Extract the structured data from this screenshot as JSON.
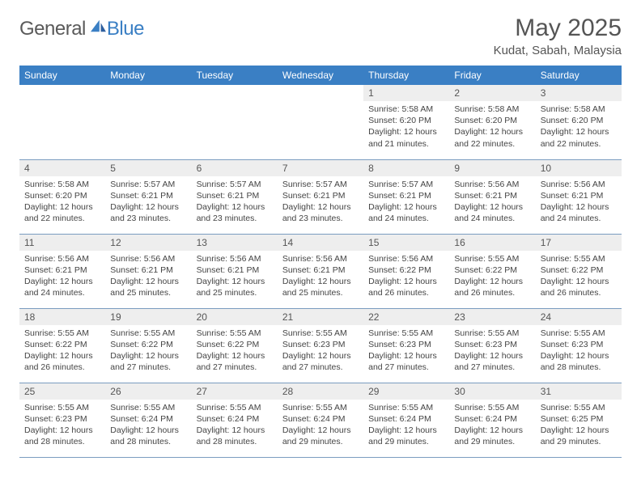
{
  "brand": {
    "text_general": "General",
    "text_blue": "Blue",
    "icon_color": "#3a7fc4"
  },
  "title": {
    "month_year": "May 2025",
    "location": "Kudat, Sabah, Malaysia"
  },
  "colors": {
    "header_bg": "#3a7fc4",
    "header_text": "#ffffff",
    "daynum_bg": "#eeeeee",
    "text": "#555555",
    "border": "#7a9cc0",
    "background": "#ffffff"
  },
  "weekdays": [
    "Sunday",
    "Monday",
    "Tuesday",
    "Wednesday",
    "Thursday",
    "Friday",
    "Saturday"
  ],
  "weeks": [
    [
      {
        "day": "",
        "sunrise": "",
        "sunset": "",
        "daylight": ""
      },
      {
        "day": "",
        "sunrise": "",
        "sunset": "",
        "daylight": ""
      },
      {
        "day": "",
        "sunrise": "",
        "sunset": "",
        "daylight": ""
      },
      {
        "day": "",
        "sunrise": "",
        "sunset": "",
        "daylight": ""
      },
      {
        "day": "1",
        "sunrise": "Sunrise: 5:58 AM",
        "sunset": "Sunset: 6:20 PM",
        "daylight": "Daylight: 12 hours and 21 minutes."
      },
      {
        "day": "2",
        "sunrise": "Sunrise: 5:58 AM",
        "sunset": "Sunset: 6:20 PM",
        "daylight": "Daylight: 12 hours and 22 minutes."
      },
      {
        "day": "3",
        "sunrise": "Sunrise: 5:58 AM",
        "sunset": "Sunset: 6:20 PM",
        "daylight": "Daylight: 12 hours and 22 minutes."
      }
    ],
    [
      {
        "day": "4",
        "sunrise": "Sunrise: 5:58 AM",
        "sunset": "Sunset: 6:20 PM",
        "daylight": "Daylight: 12 hours and 22 minutes."
      },
      {
        "day": "5",
        "sunrise": "Sunrise: 5:57 AM",
        "sunset": "Sunset: 6:21 PM",
        "daylight": "Daylight: 12 hours and 23 minutes."
      },
      {
        "day": "6",
        "sunrise": "Sunrise: 5:57 AM",
        "sunset": "Sunset: 6:21 PM",
        "daylight": "Daylight: 12 hours and 23 minutes."
      },
      {
        "day": "7",
        "sunrise": "Sunrise: 5:57 AM",
        "sunset": "Sunset: 6:21 PM",
        "daylight": "Daylight: 12 hours and 23 minutes."
      },
      {
        "day": "8",
        "sunrise": "Sunrise: 5:57 AM",
        "sunset": "Sunset: 6:21 PM",
        "daylight": "Daylight: 12 hours and 24 minutes."
      },
      {
        "day": "9",
        "sunrise": "Sunrise: 5:56 AM",
        "sunset": "Sunset: 6:21 PM",
        "daylight": "Daylight: 12 hours and 24 minutes."
      },
      {
        "day": "10",
        "sunrise": "Sunrise: 5:56 AM",
        "sunset": "Sunset: 6:21 PM",
        "daylight": "Daylight: 12 hours and 24 minutes."
      }
    ],
    [
      {
        "day": "11",
        "sunrise": "Sunrise: 5:56 AM",
        "sunset": "Sunset: 6:21 PM",
        "daylight": "Daylight: 12 hours and 24 minutes."
      },
      {
        "day": "12",
        "sunrise": "Sunrise: 5:56 AM",
        "sunset": "Sunset: 6:21 PM",
        "daylight": "Daylight: 12 hours and 25 minutes."
      },
      {
        "day": "13",
        "sunrise": "Sunrise: 5:56 AM",
        "sunset": "Sunset: 6:21 PM",
        "daylight": "Daylight: 12 hours and 25 minutes."
      },
      {
        "day": "14",
        "sunrise": "Sunrise: 5:56 AM",
        "sunset": "Sunset: 6:21 PM",
        "daylight": "Daylight: 12 hours and 25 minutes."
      },
      {
        "day": "15",
        "sunrise": "Sunrise: 5:56 AM",
        "sunset": "Sunset: 6:22 PM",
        "daylight": "Daylight: 12 hours and 26 minutes."
      },
      {
        "day": "16",
        "sunrise": "Sunrise: 5:55 AM",
        "sunset": "Sunset: 6:22 PM",
        "daylight": "Daylight: 12 hours and 26 minutes."
      },
      {
        "day": "17",
        "sunrise": "Sunrise: 5:55 AM",
        "sunset": "Sunset: 6:22 PM",
        "daylight": "Daylight: 12 hours and 26 minutes."
      }
    ],
    [
      {
        "day": "18",
        "sunrise": "Sunrise: 5:55 AM",
        "sunset": "Sunset: 6:22 PM",
        "daylight": "Daylight: 12 hours and 26 minutes."
      },
      {
        "day": "19",
        "sunrise": "Sunrise: 5:55 AM",
        "sunset": "Sunset: 6:22 PM",
        "daylight": "Daylight: 12 hours and 27 minutes."
      },
      {
        "day": "20",
        "sunrise": "Sunrise: 5:55 AM",
        "sunset": "Sunset: 6:22 PM",
        "daylight": "Daylight: 12 hours and 27 minutes."
      },
      {
        "day": "21",
        "sunrise": "Sunrise: 5:55 AM",
        "sunset": "Sunset: 6:23 PM",
        "daylight": "Daylight: 12 hours and 27 minutes."
      },
      {
        "day": "22",
        "sunrise": "Sunrise: 5:55 AM",
        "sunset": "Sunset: 6:23 PM",
        "daylight": "Daylight: 12 hours and 27 minutes."
      },
      {
        "day": "23",
        "sunrise": "Sunrise: 5:55 AM",
        "sunset": "Sunset: 6:23 PM",
        "daylight": "Daylight: 12 hours and 27 minutes."
      },
      {
        "day": "24",
        "sunrise": "Sunrise: 5:55 AM",
        "sunset": "Sunset: 6:23 PM",
        "daylight": "Daylight: 12 hours and 28 minutes."
      }
    ],
    [
      {
        "day": "25",
        "sunrise": "Sunrise: 5:55 AM",
        "sunset": "Sunset: 6:23 PM",
        "daylight": "Daylight: 12 hours and 28 minutes."
      },
      {
        "day": "26",
        "sunrise": "Sunrise: 5:55 AM",
        "sunset": "Sunset: 6:24 PM",
        "daylight": "Daylight: 12 hours and 28 minutes."
      },
      {
        "day": "27",
        "sunrise": "Sunrise: 5:55 AM",
        "sunset": "Sunset: 6:24 PM",
        "daylight": "Daylight: 12 hours and 28 minutes."
      },
      {
        "day": "28",
        "sunrise": "Sunrise: 5:55 AM",
        "sunset": "Sunset: 6:24 PM",
        "daylight": "Daylight: 12 hours and 29 minutes."
      },
      {
        "day": "29",
        "sunrise": "Sunrise: 5:55 AM",
        "sunset": "Sunset: 6:24 PM",
        "daylight": "Daylight: 12 hours and 29 minutes."
      },
      {
        "day": "30",
        "sunrise": "Sunrise: 5:55 AM",
        "sunset": "Sunset: 6:24 PM",
        "daylight": "Daylight: 12 hours and 29 minutes."
      },
      {
        "day": "31",
        "sunrise": "Sunrise: 5:55 AM",
        "sunset": "Sunset: 6:25 PM",
        "daylight": "Daylight: 12 hours and 29 minutes."
      }
    ]
  ]
}
